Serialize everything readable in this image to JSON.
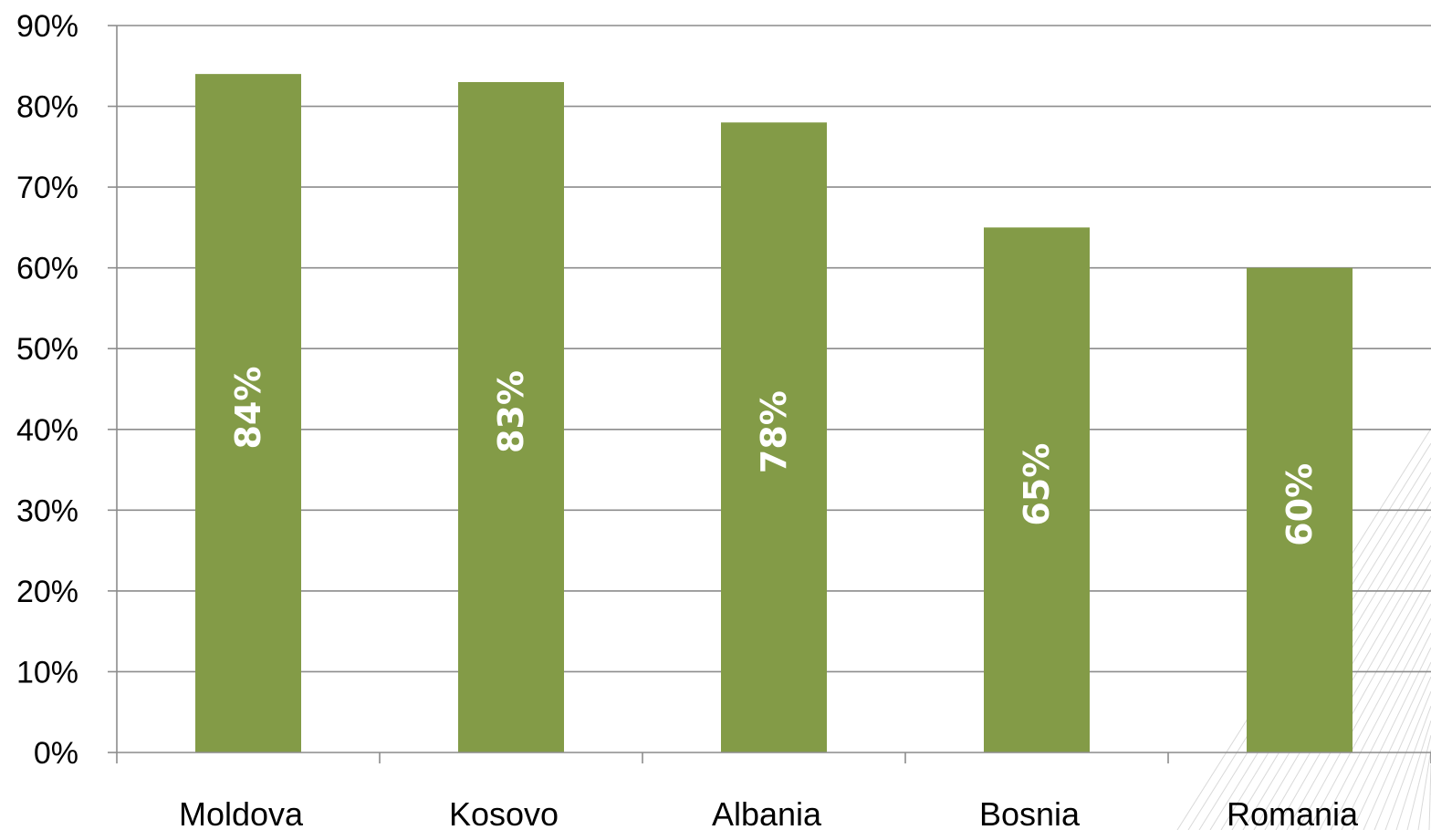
{
  "chart_data": {
    "type": "bar",
    "title": "",
    "xlabel": "",
    "ylabel": "",
    "categories": [
      "Moldova",
      "Kosovo",
      "Albania",
      "Bosnia",
      "Romania"
    ],
    "values": [
      84,
      83,
      78,
      65,
      60
    ],
    "data_labels": [
      "84%",
      "83%",
      "78%",
      "65%",
      "60%"
    ],
    "ylim": [
      0,
      90
    ],
    "yticks": [
      0,
      10,
      20,
      30,
      40,
      50,
      60,
      70,
      80,
      90
    ],
    "ytick_labels": [
      "0%",
      "10%",
      "20%",
      "30%",
      "40%",
      "50%",
      "60%",
      "70%",
      "80%",
      "90%"
    ],
    "data_label_orientation": "vertical",
    "grid": true,
    "legend": "none",
    "bar_color": "#839b47",
    "label_color": "#ffffff"
  }
}
